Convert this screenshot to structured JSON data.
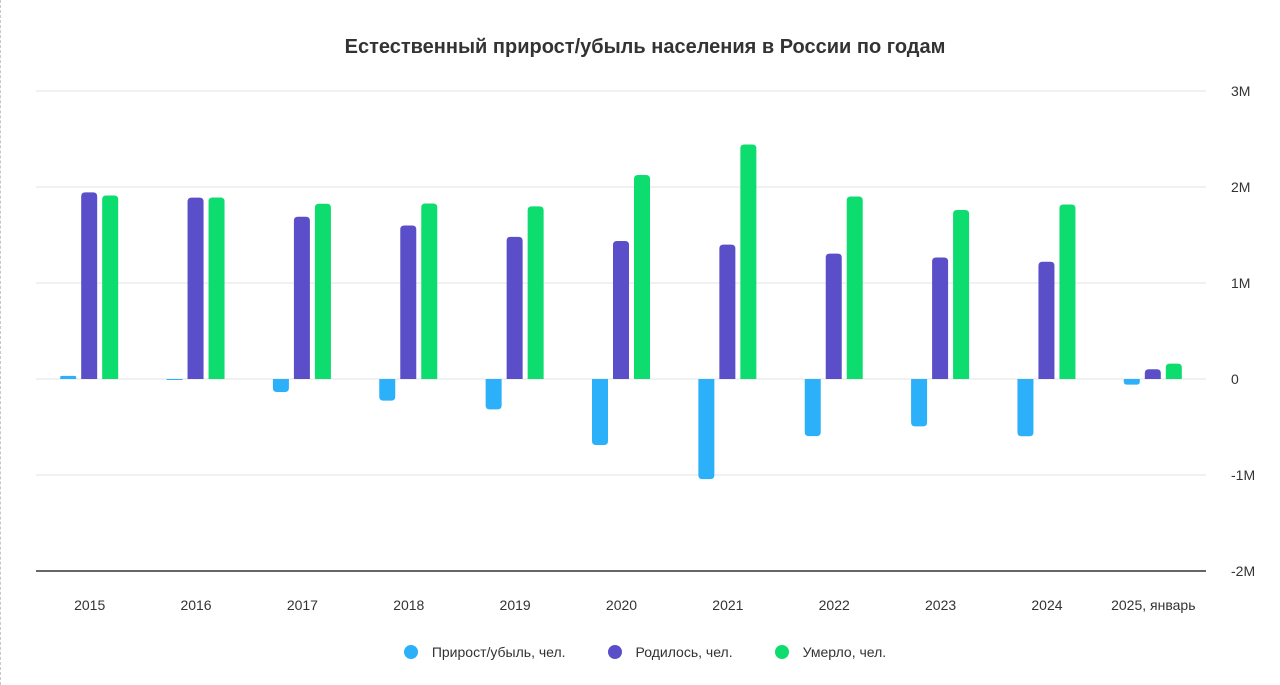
{
  "chart_data": {
    "type": "bar",
    "title": "Естественный прирост/убыль населения в России по годам",
    "categories": [
      "2015",
      "2016",
      "2017",
      "2018",
      "2019",
      "2020",
      "2021",
      "2022",
      "2023",
      "2024",
      "2025, январь"
    ],
    "series": [
      {
        "name": "Прирост/убыль, чел.",
        "color": "#2bb0f9",
        "values": [
          32000,
          -2000,
          -135000,
          -225000,
          -317000,
          -688000,
          -1043000,
          -595000,
          -493000,
          -596000,
          -58000
        ]
      },
      {
        "name": "Родилось, чел.",
        "color": "#5a4fc8",
        "values": [
          1944000,
          1889000,
          1690000,
          1599000,
          1481000,
          1437000,
          1400000,
          1306000,
          1266000,
          1222000,
          102000
        ]
      },
      {
        "name": "Умерло, чел.",
        "color": "#0ddc6e",
        "values": [
          1912000,
          1891000,
          1826000,
          1828000,
          1798000,
          2125000,
          2443000,
          1901000,
          1760000,
          1818000,
          160000
        ]
      }
    ],
    "ylim": [
      -2000000,
      3000000
    ],
    "y_ticks": [
      {
        "value": 3000000,
        "label": "3M"
      },
      {
        "value": 2000000,
        "label": "2M"
      },
      {
        "value": 1000000,
        "label": "1M"
      },
      {
        "value": 0,
        "label": "0"
      },
      {
        "value": -1000000,
        "label": "-1M"
      },
      {
        "value": -2000000,
        "label": "-2M"
      }
    ],
    "y_axis_side": "right",
    "grid": true,
    "legend_position": "bottom-center"
  }
}
